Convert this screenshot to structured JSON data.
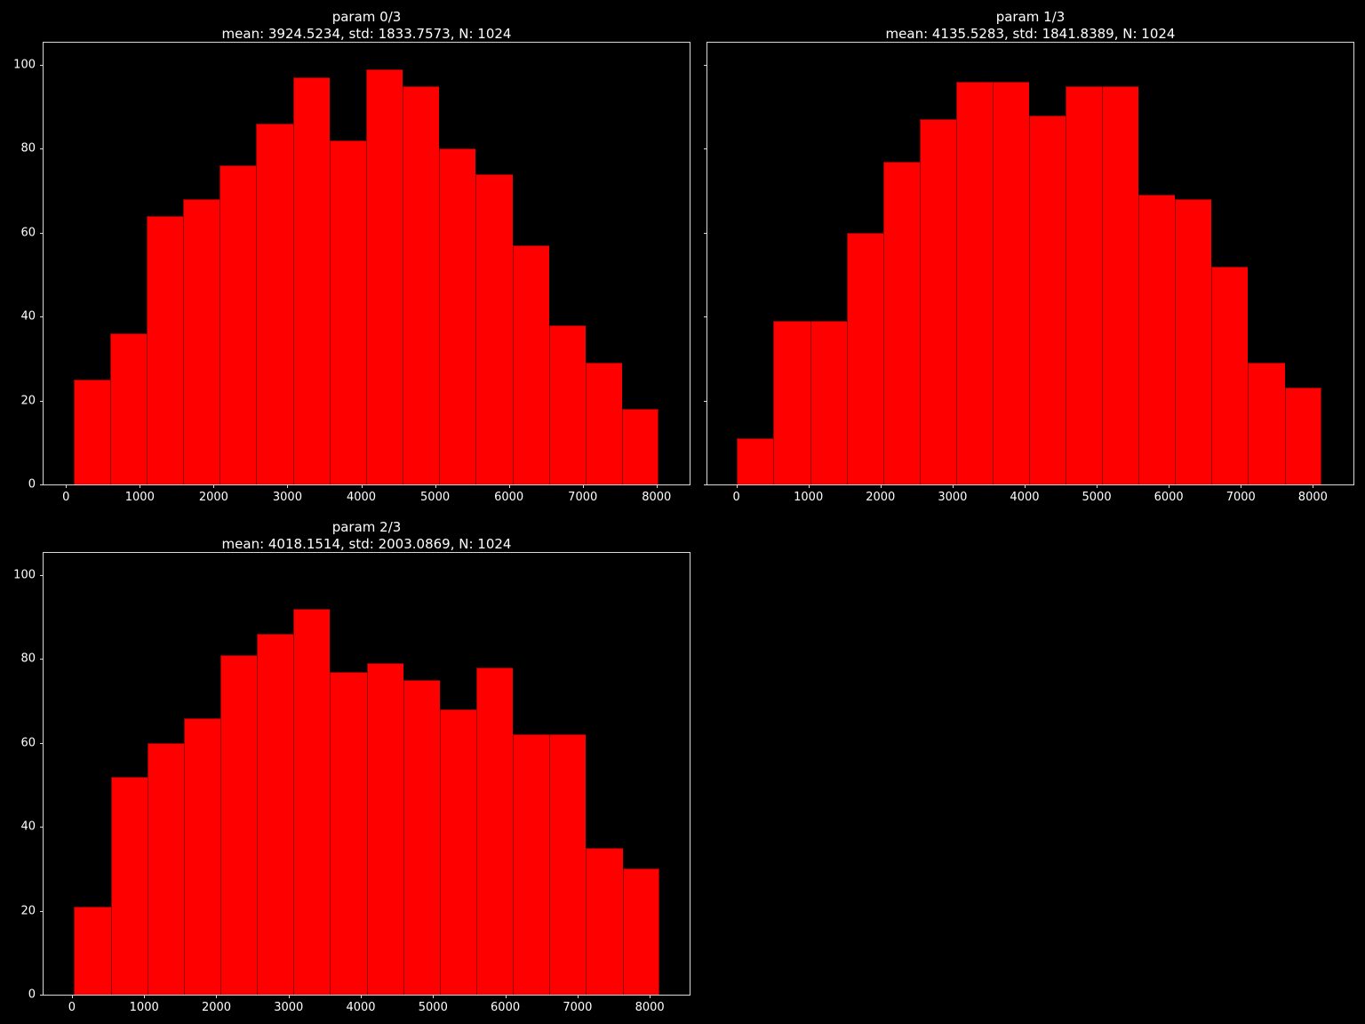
{
  "figure": {
    "background": "#000000",
    "text_color": "#ffffff",
    "spine_color": "#d9d9d9"
  },
  "chart_data": [
    {
      "type": "bar",
      "title": "param 0/3",
      "subtitle": "mean: 3924.5234, std: 1833.7573, N: 1024",
      "bar_color": "#ff0000",
      "n": 1024,
      "bin_start": 101,
      "bin_width": 495.6,
      "counts": [
        25,
        36,
        64,
        68,
        76,
        86,
        97,
        82,
        99,
        95,
        80,
        74,
        57,
        38,
        29,
        18
      ],
      "xticks": [
        0,
        1000,
        2000,
        3000,
        4000,
        5000,
        6000,
        7000,
        8000
      ],
      "yticks": [
        0,
        20,
        40,
        60,
        80,
        100
      ],
      "xlim": [
        -304,
        8448
      ],
      "ylim": [
        0,
        105.3
      ],
      "show_y_labels": true,
      "grid": false,
      "legend_position": "none"
    },
    {
      "type": "bar",
      "title": "param 1/3",
      "subtitle": "mean: 4135.5283, std: 1841.8389, N: 1024",
      "bar_color": "#ff0000",
      "n": 1024,
      "bin_start": 10,
      "bin_width": 506.5,
      "counts": [
        11,
        39,
        39,
        60,
        77,
        87,
        96,
        96,
        88,
        95,
        95,
        69,
        68,
        52,
        29,
        23
      ],
      "xticks": [
        0,
        1000,
        2000,
        3000,
        4000,
        5000,
        6000,
        7000,
        8000
      ],
      "yticks": [
        0,
        20,
        40,
        60,
        80,
        100
      ],
      "xlim": [
        -402,
        8563
      ],
      "ylim": [
        0,
        105.3
      ],
      "show_y_labels": false,
      "grid": false,
      "legend_position": "none"
    },
    {
      "type": "bar",
      "title": "param 2/3",
      "subtitle": "mean: 4018.1514, std: 2003.0869, N: 1024",
      "bar_color": "#ff0000",
      "n": 1024,
      "bin_start": 30,
      "bin_width": 506.25,
      "counts": [
        21,
        52,
        60,
        66,
        81,
        86,
        92,
        77,
        79,
        75,
        68,
        78,
        62,
        62,
        35,
        30
      ],
      "xticks": [
        0,
        1000,
        2000,
        3000,
        4000,
        5000,
        6000,
        7000,
        8000
      ],
      "yticks": [
        0,
        20,
        40,
        60,
        80,
        100
      ],
      "xlim": [
        -393,
        8552
      ],
      "ylim": [
        0,
        105.3
      ],
      "show_y_labels": true,
      "grid": false,
      "legend_position": "none"
    }
  ]
}
